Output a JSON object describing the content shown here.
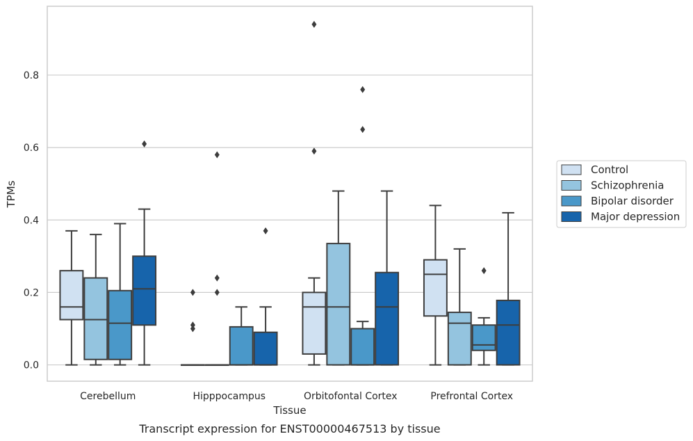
{
  "chart_data": {
    "type": "box",
    "xlabel": "Tissue",
    "ylabel": "TPMs",
    "caption": "Transcript expression for ENST00000467513 by tissue",
    "categories": [
      "Cerebellum",
      "Hipppocampus",
      "Orbitofontal Cortex",
      "Prefrontal Cortex"
    ],
    "ylim": [
      -0.045,
      0.99
    ],
    "yticks": [
      0.0,
      0.2,
      0.4,
      0.6,
      0.8
    ],
    "ytick_labels": [
      "0.0",
      "0.2",
      "0.4",
      "0.6",
      "0.8"
    ],
    "grid": "horizontal",
    "legend_position": "right",
    "series": [
      {
        "name": "Control",
        "color": "#d0e1f2",
        "boxes": [
          {
            "whislo": 0.0,
            "q1": 0.125,
            "med": 0.16,
            "q3": 0.26,
            "whishi": 0.37,
            "fliers": []
          },
          {
            "whislo": 0.0,
            "q1": 0.0,
            "med": 0.0,
            "q3": 0.0,
            "whishi": 0.0,
            "fliers": [
              0.1,
              0.11,
              0.2
            ]
          },
          {
            "whislo": 0.0,
            "q1": 0.03,
            "med": 0.16,
            "q3": 0.2,
            "whishi": 0.24,
            "fliers": [
              0.59,
              0.94
            ]
          },
          {
            "whislo": 0.0,
            "q1": 0.135,
            "med": 0.25,
            "q3": 0.29,
            "whishi": 0.44,
            "fliers": []
          }
        ]
      },
      {
        "name": "Schizophrenia",
        "color": "#94c4df",
        "boxes": [
          {
            "whislo": 0.0,
            "q1": 0.015,
            "med": 0.125,
            "q3": 0.24,
            "whishi": 0.36,
            "fliers": []
          },
          {
            "whislo": 0.0,
            "q1": 0.0,
            "med": 0.0,
            "q3": 0.0,
            "whishi": 0.0,
            "fliers": [
              0.2,
              0.24,
              0.58
            ]
          },
          {
            "whislo": 0.0,
            "q1": 0.0,
            "med": 0.16,
            "q3": 0.335,
            "whishi": 0.48,
            "fliers": []
          },
          {
            "whislo": 0.0,
            "q1": 0.0,
            "med": 0.115,
            "q3": 0.145,
            "whishi": 0.32,
            "fliers": []
          }
        ]
      },
      {
        "name": "Bipolar disorder",
        "color": "#4a98c9",
        "boxes": [
          {
            "whislo": 0.0,
            "q1": 0.015,
            "med": 0.115,
            "q3": 0.205,
            "whishi": 0.39,
            "fliers": []
          },
          {
            "whislo": 0.0,
            "q1": 0.0,
            "med": 0.0,
            "q3": 0.105,
            "whishi": 0.16,
            "fliers": []
          },
          {
            "whislo": 0.0,
            "q1": 0.0,
            "med": 0.0,
            "q3": 0.1,
            "whishi": 0.12,
            "fliers": [
              0.65,
              0.76
            ]
          },
          {
            "whislo": 0.0,
            "q1": 0.04,
            "med": 0.055,
            "q3": 0.11,
            "whishi": 0.13,
            "fliers": [
              0.26
            ]
          }
        ]
      },
      {
        "name": "Major depression",
        "color": "#1764ab",
        "boxes": [
          {
            "whislo": 0.0,
            "q1": 0.11,
            "med": 0.21,
            "q3": 0.3,
            "whishi": 0.43,
            "fliers": [
              0.61
            ]
          },
          {
            "whislo": 0.0,
            "q1": 0.0,
            "med": 0.0,
            "q3": 0.09,
            "whishi": 0.16,
            "fliers": [
              0.37
            ]
          },
          {
            "whislo": 0.0,
            "q1": 0.0,
            "med": 0.16,
            "q3": 0.255,
            "whishi": 0.48,
            "fliers": []
          },
          {
            "whislo": 0.0,
            "q1": 0.0,
            "med": 0.11,
            "q3": 0.178,
            "whishi": 0.42,
            "fliers": []
          }
        ]
      }
    ]
  }
}
